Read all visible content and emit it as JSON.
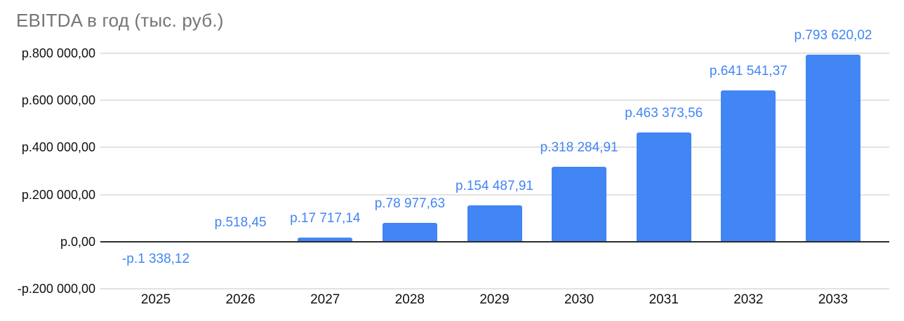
{
  "chart_data": {
    "type": "bar",
    "title": "EBITDA в год (тыс. руб.)",
    "xlabel": "",
    "ylabel": "",
    "categories": [
      "2025",
      "2026",
      "2027",
      "2028",
      "2029",
      "2030",
      "2031",
      "2032",
      "2033"
    ],
    "values": [
      -1338.12,
      518.45,
      17717.14,
      78977.63,
      154487.91,
      318284.91,
      463373.56,
      641541.37,
      793620.02
    ],
    "data_labels": [
      "-р.1 338,12",
      "р.518,45",
      "р.17 717,14",
      "р.78 977,63",
      "р.154 487,91",
      "р.318 284,91",
      "р.463 373,56",
      "р.641 541,37",
      "р.793 620,02"
    ],
    "y_ticks": [
      {
        "value": 800000,
        "label": "р.800 000,00"
      },
      {
        "value": 600000,
        "label": "р.600 000,00"
      },
      {
        "value": 400000,
        "label": "р.400 000,00"
      },
      {
        "value": 200000,
        "label": "р.200 000,00"
      },
      {
        "value": 0,
        "label": "р.0,00"
      },
      {
        "value": -200000,
        "label": "-р.200 000,00"
      }
    ],
    "ylim": [
      -200000,
      800000
    ],
    "grid": true,
    "legend": "none"
  },
  "colors": {
    "bar": "#4285f4",
    "data_label": "#4285f4",
    "title": "#757575",
    "axis_label": "#111111",
    "gridline": "#e2e2e2",
    "zero_line": "#2b2b2b"
  }
}
